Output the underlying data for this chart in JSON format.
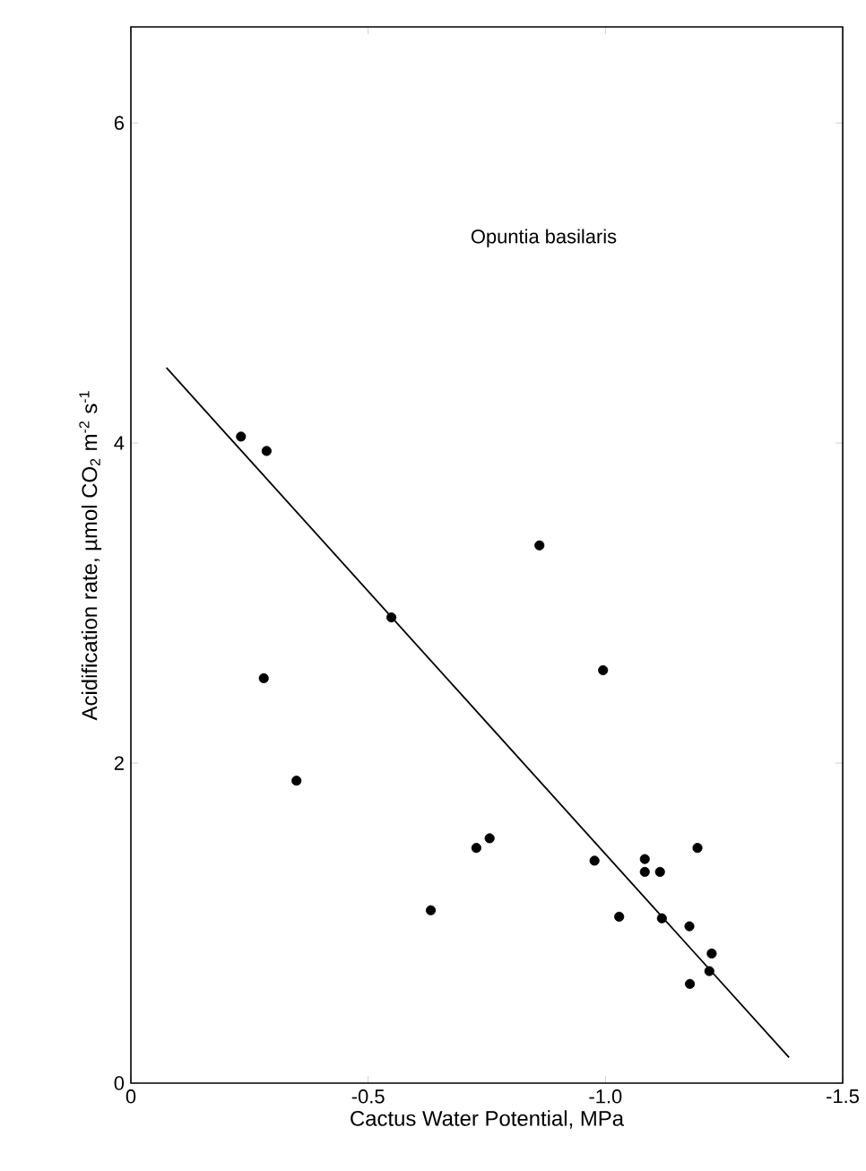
{
  "chart_data": {
    "type": "scatter",
    "xlabel": "Cactus Water Potential, MPa",
    "ylabel": "Acidification rate, µmol CO$_{2}$ m$^{-2}$ s$^{-1}$",
    "annotations": [
      "Opuntia basilaris"
    ],
    "xlim": [
      0,
      -1.5
    ],
    "xticks": [
      0,
      {
        "value": -0.5,
        "label": "-0.5"
      },
      {
        "value": -1.0,
        "label": "-1.0"
      },
      {
        "value": -1.5,
        "label": "-1.5"
      }
    ],
    "ylim": [
      0,
      6.6
    ],
    "yticks": [
      0,
      2,
      4,
      6
    ],
    "marker": "circle",
    "series": [
      {
        "color": "#000000",
        "x": [
          -0.232,
          -0.286,
          -0.861,
          -0.549,
          -0.28,
          -0.995,
          -0.349,
          -0.728,
          -0.756,
          -0.632,
          -0.977,
          -1.083,
          -1.083,
          -1.115,
          -1.194,
          -1.029,
          -1.119,
          -1.177,
          -1.224,
          -1.219,
          -1.178
        ],
        "values": [
          4.04,
          3.95,
          3.36,
          2.91,
          2.53,
          2.58,
          1.89,
          1.47,
          1.53,
          1.08,
          1.39,
          1.4,
          1.32,
          1.32,
          1.47,
          1.04,
          1.03,
          0.98,
          0.81,
          0.7,
          0.62
        ]
      },
      {
        "type": "line",
        "marker": "none",
        "color": "#000000",
        "x": [
          -0.075,
          -1.387
        ],
        "values": [
          4.47,
          0.16
        ]
      }
    ]
  }
}
